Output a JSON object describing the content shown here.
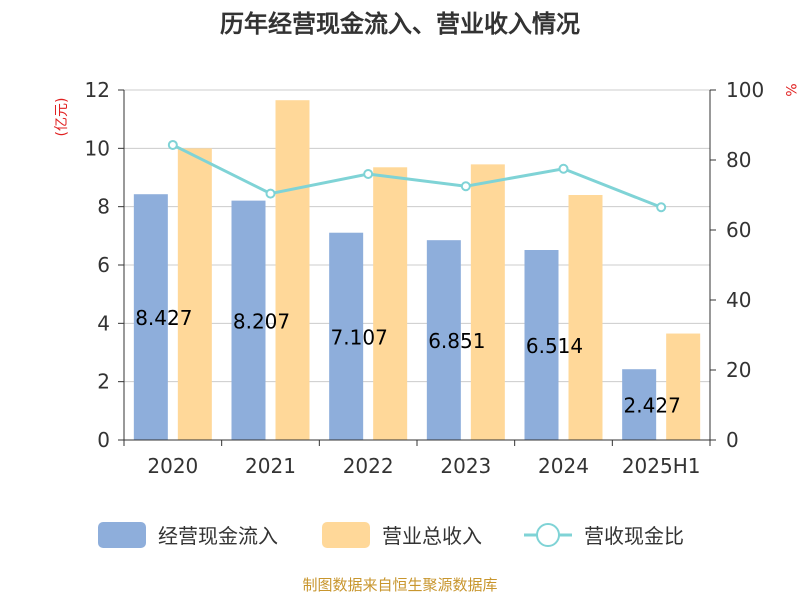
{
  "chart_data": {
    "type": "bar",
    "title": "历年经营现金流入、营业收入情况",
    "categories": [
      "2020",
      "2021",
      "2022",
      "2023",
      "2024",
      "2025H1"
    ],
    "y_left": {
      "unit": "(亿元)",
      "ylim": [
        0,
        12
      ],
      "ticks": [
        0,
        2,
        4,
        6,
        8,
        10,
        12
      ]
    },
    "y_right": {
      "unit": "%",
      "ylim": [
        0,
        100
      ],
      "ticks": [
        0,
        20,
        40,
        60,
        80,
        100
      ]
    },
    "series": [
      {
        "name": "经营现金流入",
        "type": "bar",
        "axis": "left",
        "color": "#8eaedb",
        "values": [
          8.427,
          8.207,
          7.107,
          6.851,
          6.514,
          2.427
        ],
        "labels": [
          "8.427",
          "8.207",
          "7.107",
          "6.851",
          "6.514",
          "2.427"
        ]
      },
      {
        "name": "营业总收入",
        "type": "bar",
        "axis": "left",
        "color": "#ffd899",
        "values": [
          10.0,
          11.65,
          9.35,
          9.45,
          8.4,
          3.65
        ]
      },
      {
        "name": "营收现金比",
        "type": "line",
        "axis": "right",
        "color": "#7fd3d6",
        "values": [
          84.3,
          70.4,
          76.0,
          72.5,
          77.5,
          66.5
        ]
      }
    ],
    "grid": true,
    "legend_position": "bottom"
  },
  "source_note": "制图数据来自恒生聚源数据库"
}
